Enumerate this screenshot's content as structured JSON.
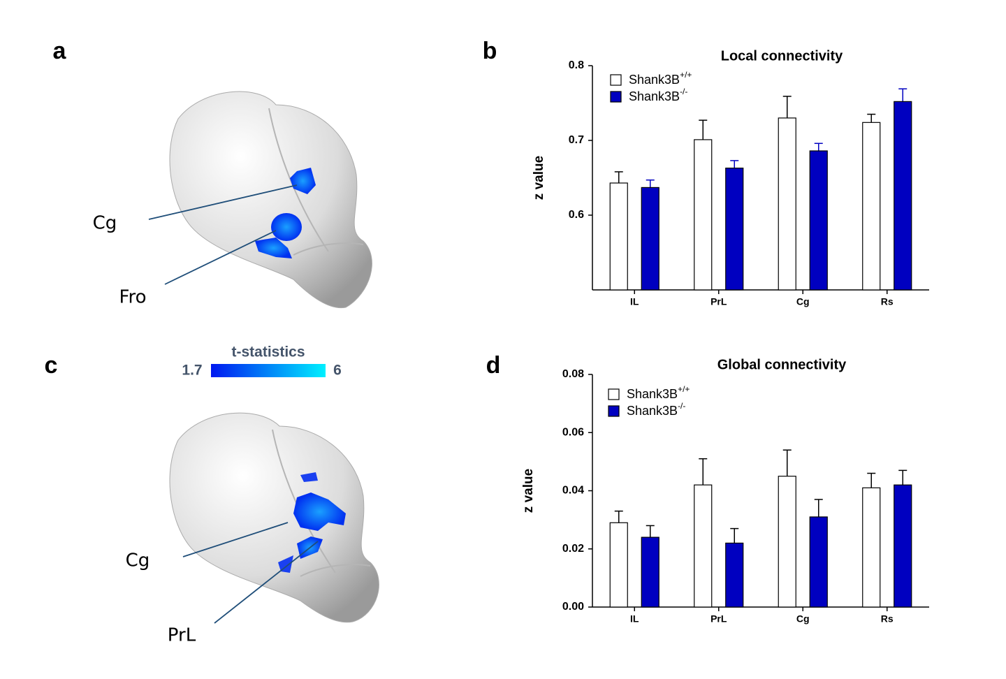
{
  "panels": {
    "a": "a",
    "b": "b",
    "c": "c",
    "d": "d"
  },
  "brain_maps": {
    "top_labels": [
      "Cg",
      "Fro"
    ],
    "bottom_labels": [
      "Cg",
      "PrL"
    ]
  },
  "colorbar": {
    "title": "t-statistics",
    "range": [
      1.7,
      6
    ],
    "colors": [
      "#0018f0",
      "#00f0ff"
    ]
  },
  "chart_data": [
    {
      "type": "bar",
      "title": "Local connectivity",
      "ylabel": "z value",
      "categories": [
        "IL",
        "PrL",
        "Cg",
        "Rs"
      ],
      "series": [
        {
          "name": "Shank3B+/+",
          "color": "#ffffff",
          "error_color": "#000000",
          "values": [
            0.643,
            0.701,
            0.73,
            0.724
          ],
          "errors": [
            0.015,
            0.026,
            0.029,
            0.011
          ]
        },
        {
          "name": "Shank3B-/-",
          "color": "#0000c0",
          "error_color": "#0000c0",
          "values": [
            0.637,
            0.663,
            0.686,
            0.752
          ],
          "errors": [
            0.01,
            0.01,
            0.01,
            0.017
          ]
        }
      ],
      "ylim": [
        0.5,
        0.8
      ],
      "yticks": [
        0.6,
        0.7,
        0.8
      ],
      "legend": "upper left"
    },
    {
      "type": "bar",
      "title": "Global connectivity",
      "ylabel": "z value",
      "categories": [
        "IL",
        "PrL",
        "Cg",
        "Rs"
      ],
      "series": [
        {
          "name": "Shank3B+/+",
          "color": "#ffffff",
          "error_color": "#000000",
          "values": [
            0.029,
            0.042,
            0.045,
            0.041
          ],
          "errors": [
            0.004,
            0.009,
            0.009,
            0.005
          ]
        },
        {
          "name": "Shank3B-/-",
          "color": "#0000c0",
          "error_color": "#000000",
          "values": [
            0.024,
            0.022,
            0.031,
            0.042
          ],
          "errors": [
            0.004,
            0.005,
            0.006,
            0.005
          ]
        }
      ],
      "ylim": [
        0,
        0.08
      ],
      "yticks": [
        {
          "value": 0,
          "label": "0.00"
        },
        0.02,
        0.04,
        0.06,
        0.08
      ],
      "legend": "upper left"
    }
  ]
}
